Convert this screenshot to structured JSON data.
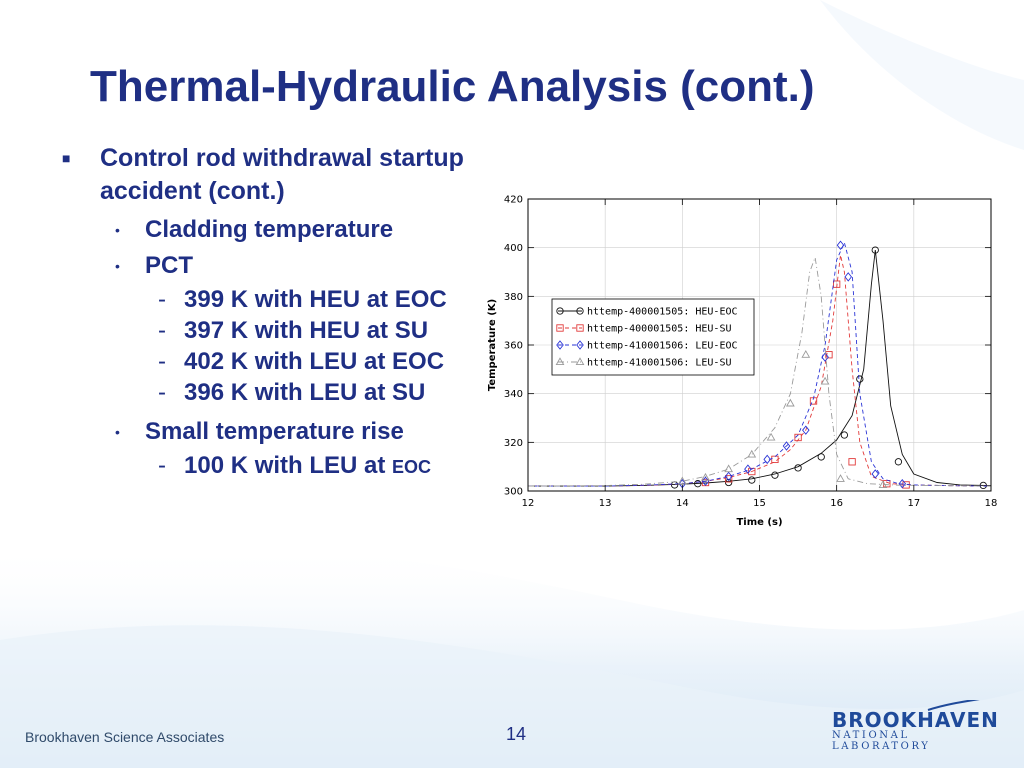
{
  "title": "Thermal-Hydraulic Analysis (cont.)",
  "bullets": {
    "main": "Control rod withdrawal startup accident (cont.)",
    "cladding": "Cladding temperature",
    "pct": "PCT",
    "pct_items": [
      "399 K with HEU at EOC",
      "397 K with HEU at SU",
      "402 K with LEU at EOC",
      "396 K with LEU at SU"
    ],
    "rise": "Small temperature rise",
    "rise_item_main": "100 K with LEU at ",
    "rise_item_small": "EOC"
  },
  "footer": {
    "org": "Brookhaven Science Associates",
    "page": "14",
    "logo_brand": "BROOKHAVEN",
    "logo_sub": "NATIONAL LABORATORY"
  },
  "colors": {
    "title": "#1f2f84",
    "heu_eoc": "#111111",
    "heu_su": "#e23a3a",
    "leu_eoc": "#2a34d6",
    "leu_su": "#9a9a9a"
  },
  "chart_data": {
    "type": "line",
    "xlabel": "Time (s)",
    "ylabel": "Temperature (K)",
    "xlim": [
      12,
      18
    ],
    "ylim": [
      300,
      420
    ],
    "xticks": [
      12,
      13,
      14,
      15,
      16,
      17,
      18
    ],
    "yticks": [
      300,
      320,
      340,
      360,
      380,
      400,
      420
    ],
    "legend_position": "upper-left",
    "series": [
      {
        "name": "httemp-400001505: HEU-EOC",
        "marker": "circle",
        "color": "#111111",
        "dash": "solid",
        "x": [
          12.0,
          13.0,
          13.5,
          14.0,
          14.3,
          14.6,
          14.9,
          15.2,
          15.5,
          15.8,
          16.0,
          16.2,
          16.35,
          16.45,
          16.5,
          16.6,
          16.7,
          16.85,
          17.0,
          17.3,
          17.6,
          18.0
        ],
        "y": [
          302,
          302,
          302.3,
          302.8,
          303.3,
          304,
          305,
          307,
          310,
          315.5,
          321,
          331,
          350,
          385,
          399,
          370,
          335,
          315,
          307,
          303.5,
          302.5,
          302.2
        ],
        "markers_x": [
          13.9,
          14.2,
          14.6,
          14.9,
          15.2,
          15.5,
          15.8,
          16.1,
          16.3,
          16.5,
          16.8,
          17.9
        ],
        "markers_y": [
          302.5,
          303,
          303.5,
          304.5,
          306.5,
          309.5,
          314,
          323,
          346,
          399,
          312,
          302.3
        ]
      },
      {
        "name": "httemp-400001505: HEU-SU",
        "marker": "square",
        "color": "#e23a3a",
        "dash": "dashed",
        "x": [
          12.0,
          13.0,
          13.6,
          14.0,
          14.3,
          14.6,
          14.9,
          15.2,
          15.4,
          15.6,
          15.8,
          15.95,
          16.05,
          16.1,
          16.2,
          16.3,
          16.45,
          16.7,
          17.0,
          17.4,
          18.0
        ],
        "y": [
          302,
          302,
          302.4,
          303,
          304,
          305.5,
          308,
          312,
          317,
          325,
          343,
          370,
          397,
          390,
          350,
          320,
          306,
          303,
          302.5,
          302.2,
          302
        ],
        "markers_x": [
          14.3,
          14.6,
          14.9,
          15.2,
          15.5,
          15.7,
          15.9,
          16.0,
          16.2,
          16.65,
          16.9
        ],
        "markers_y": [
          303.5,
          305,
          308,
          313,
          322,
          337,
          356,
          385,
          312,
          303,
          302.5
        ]
      },
      {
        "name": "httemp-410001506: LEU-EOC",
        "marker": "diamond",
        "color": "#2a34d6",
        "dash": "dashed",
        "x": [
          12.0,
          13.0,
          13.5,
          14.0,
          14.3,
          14.6,
          14.9,
          15.2,
          15.5,
          15.7,
          15.85,
          16.0,
          16.1,
          16.2,
          16.3,
          16.45,
          16.6,
          16.8,
          17.0,
          17.4,
          18.0
        ],
        "y": [
          302,
          302,
          302.4,
          303,
          304,
          306,
          309,
          314,
          323,
          338,
          360,
          395,
          402,
          390,
          340,
          312,
          305,
          303,
          302.5,
          302.2,
          302
        ],
        "markers_x": [
          14.0,
          14.3,
          14.6,
          14.85,
          15.1,
          15.35,
          15.6,
          15.85,
          16.05,
          16.15,
          16.5,
          16.85
        ],
        "markers_y": [
          303,
          304,
          306,
          309,
          313,
          318.5,
          325,
          355,
          401,
          388,
          307,
          303
        ]
      },
      {
        "name": "httemp-410001506: LEU-SU",
        "marker": "triangle",
        "color": "#9a9a9a",
        "dash": "dashdot",
        "x": [
          12.0,
          13.0,
          13.5,
          14.0,
          14.3,
          14.6,
          14.9,
          15.2,
          15.4,
          15.55,
          15.65,
          15.72,
          15.8,
          15.9,
          16.0,
          16.15,
          16.4,
          16.8,
          17.4,
          18.0
        ],
        "y": [
          302,
          302.2,
          302.8,
          304,
          306,
          309,
          315,
          326,
          340,
          365,
          390,
          396,
          380,
          340,
          315,
          305,
          303,
          302.4,
          302.2,
          302
        ],
        "markers_x": [
          14.0,
          14.3,
          14.6,
          14.9,
          15.15,
          15.4,
          15.6,
          15.85,
          16.05,
          16.6
        ],
        "markers_y": [
          304,
          305.5,
          309,
          315,
          322,
          336,
          356,
          345,
          305,
          302.5
        ]
      }
    ]
  }
}
